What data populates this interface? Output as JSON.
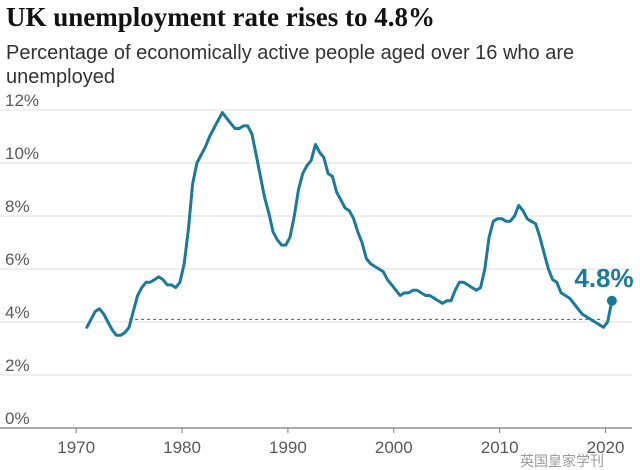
{
  "chart_data": {
    "type": "line",
    "title": "UK unemployment rate rises to 4.8%",
    "subtitle": "Percentage of economically active people aged over 16 who are unemployed",
    "xlabel": "",
    "ylabel": "",
    "xlim": [
      1968,
      2022.5
    ],
    "ylim": [
      0,
      12
    ],
    "x_ticks": [
      1970,
      1980,
      1990,
      2000,
      2010,
      2020
    ],
    "y_ticks": [
      0,
      2,
      4,
      6,
      8,
      10,
      12
    ],
    "y_tick_labels": [
      "0%",
      "2%",
      "4%",
      "6%",
      "8%",
      "10%",
      "12%"
    ],
    "grid": true,
    "reference_line": {
      "value": 4.1,
      "x_start": 1975.0,
      "x_end": 2019.5,
      "style": "dashed"
    },
    "latest": {
      "x": 2020.6,
      "y": 4.8,
      "label": "4.8%"
    },
    "series": [
      {
        "name": "UK unemployment rate",
        "color": "#1a7a99",
        "points": [
          [
            1971.0,
            3.8
          ],
          [
            1971.4,
            4.1
          ],
          [
            1971.8,
            4.4
          ],
          [
            1972.2,
            4.5
          ],
          [
            1972.6,
            4.3
          ],
          [
            1973.0,
            4.0
          ],
          [
            1973.4,
            3.7
          ],
          [
            1973.8,
            3.5
          ],
          [
            1974.2,
            3.5
          ],
          [
            1974.6,
            3.6
          ],
          [
            1975.0,
            3.8
          ],
          [
            1975.4,
            4.4
          ],
          [
            1975.8,
            5.0
          ],
          [
            1976.2,
            5.3
          ],
          [
            1976.6,
            5.5
          ],
          [
            1977.0,
            5.5
          ],
          [
            1977.4,
            5.6
          ],
          [
            1977.8,
            5.7
          ],
          [
            1978.2,
            5.6
          ],
          [
            1978.6,
            5.4
          ],
          [
            1979.0,
            5.4
          ],
          [
            1979.4,
            5.3
          ],
          [
            1979.8,
            5.5
          ],
          [
            1980.2,
            6.2
          ],
          [
            1980.6,
            7.5
          ],
          [
            1981.0,
            9.2
          ],
          [
            1981.4,
            10.0
          ],
          [
            1981.8,
            10.3
          ],
          [
            1982.2,
            10.6
          ],
          [
            1982.6,
            11.0
          ],
          [
            1983.0,
            11.3
          ],
          [
            1983.4,
            11.6
          ],
          [
            1983.8,
            11.9
          ],
          [
            1984.2,
            11.7
          ],
          [
            1984.6,
            11.5
          ],
          [
            1985.0,
            11.3
          ],
          [
            1985.4,
            11.3
          ],
          [
            1985.8,
            11.4
          ],
          [
            1986.2,
            11.4
          ],
          [
            1986.6,
            11.1
          ],
          [
            1987.0,
            10.3
          ],
          [
            1987.4,
            9.5
          ],
          [
            1987.8,
            8.7
          ],
          [
            1988.2,
            8.1
          ],
          [
            1988.6,
            7.4
          ],
          [
            1989.0,
            7.1
          ],
          [
            1989.4,
            6.9
          ],
          [
            1989.8,
            6.9
          ],
          [
            1990.2,
            7.2
          ],
          [
            1990.6,
            8.0
          ],
          [
            1991.0,
            9.0
          ],
          [
            1991.4,
            9.6
          ],
          [
            1991.8,
            9.9
          ],
          [
            1992.2,
            10.1
          ],
          [
            1992.6,
            10.7
          ],
          [
            1993.0,
            10.4
          ],
          [
            1993.4,
            10.2
          ],
          [
            1993.8,
            9.6
          ],
          [
            1994.2,
            9.5
          ],
          [
            1994.6,
            8.9
          ],
          [
            1995.0,
            8.6
          ],
          [
            1995.4,
            8.3
          ],
          [
            1995.8,
            8.2
          ],
          [
            1996.2,
            7.9
          ],
          [
            1996.6,
            7.4
          ],
          [
            1997.0,
            7.0
          ],
          [
            1997.4,
            6.4
          ],
          [
            1997.8,
            6.2
          ],
          [
            1998.2,
            6.1
          ],
          [
            1998.6,
            6.0
          ],
          [
            1999.0,
            5.9
          ],
          [
            1999.4,
            5.6
          ],
          [
            1999.8,
            5.4
          ],
          [
            2000.2,
            5.2
          ],
          [
            2000.6,
            5.0
          ],
          [
            2001.0,
            5.1
          ],
          [
            2001.4,
            5.1
          ],
          [
            2001.8,
            5.2
          ],
          [
            2002.2,
            5.2
          ],
          [
            2002.6,
            5.1
          ],
          [
            2003.0,
            5.0
          ],
          [
            2003.4,
            5.0
          ],
          [
            2003.8,
            4.9
          ],
          [
            2004.2,
            4.8
          ],
          [
            2004.6,
            4.7
          ],
          [
            2005.0,
            4.8
          ],
          [
            2005.4,
            4.8
          ],
          [
            2005.8,
            5.2
          ],
          [
            2006.2,
            5.5
          ],
          [
            2006.6,
            5.5
          ],
          [
            2007.0,
            5.4
          ],
          [
            2007.4,
            5.3
          ],
          [
            2007.8,
            5.2
          ],
          [
            2008.2,
            5.3
          ],
          [
            2008.6,
            6.0
          ],
          [
            2009.0,
            7.2
          ],
          [
            2009.4,
            7.8
          ],
          [
            2009.8,
            7.9
          ],
          [
            2010.2,
            7.9
          ],
          [
            2010.6,
            7.8
          ],
          [
            2011.0,
            7.8
          ],
          [
            2011.4,
            8.0
          ],
          [
            2011.8,
            8.4
          ],
          [
            2012.2,
            8.2
          ],
          [
            2012.6,
            7.9
          ],
          [
            2013.0,
            7.8
          ],
          [
            2013.4,
            7.7
          ],
          [
            2013.8,
            7.2
          ],
          [
            2014.2,
            6.6
          ],
          [
            2014.6,
            6.0
          ],
          [
            2015.0,
            5.6
          ],
          [
            2015.4,
            5.5
          ],
          [
            2015.8,
            5.1
          ],
          [
            2016.2,
            5.0
          ],
          [
            2016.6,
            4.9
          ],
          [
            2017.0,
            4.7
          ],
          [
            2017.4,
            4.5
          ],
          [
            2017.8,
            4.3
          ],
          [
            2018.2,
            4.2
          ],
          [
            2018.6,
            4.1
          ],
          [
            2019.0,
            4.0
          ],
          [
            2019.4,
            3.9
          ],
          [
            2019.8,
            3.8
          ],
          [
            2020.2,
            4.0
          ],
          [
            2020.6,
            4.8
          ]
        ]
      }
    ]
  },
  "source_mark": "英国皇家学刊"
}
